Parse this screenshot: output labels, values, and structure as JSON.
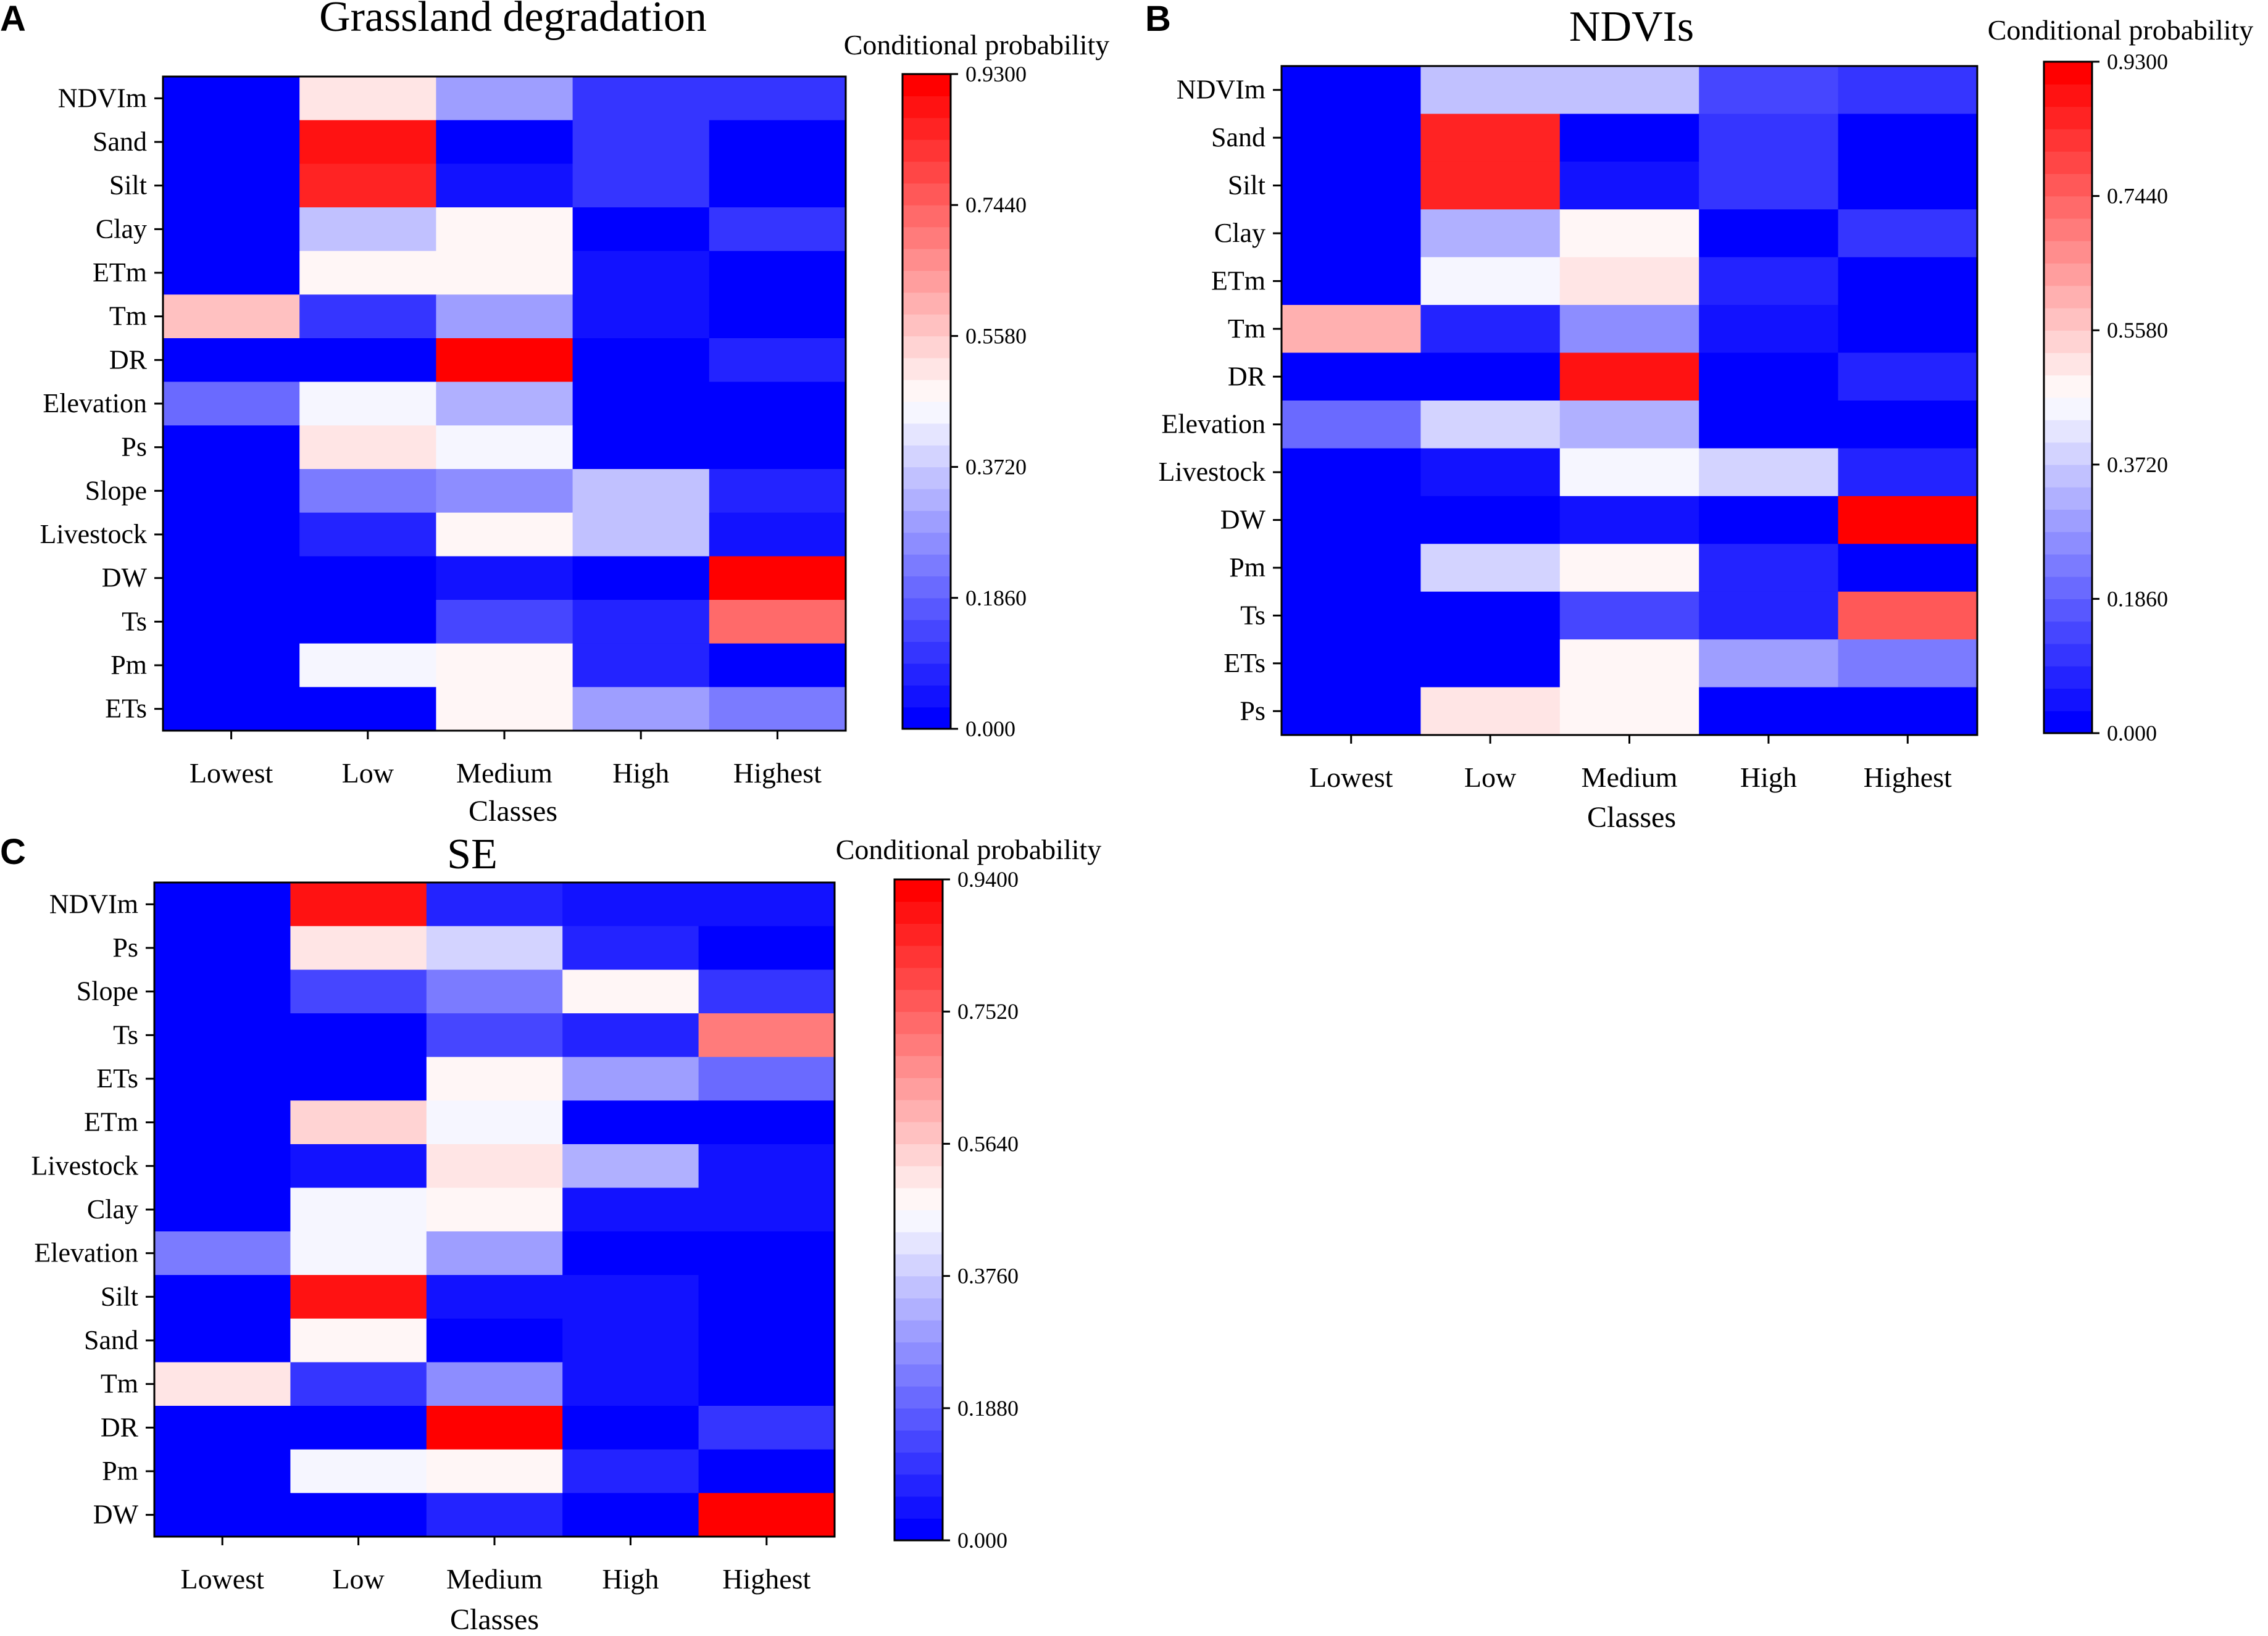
{
  "figure": {
    "background": "#ffffff"
  },
  "colormap": {
    "low": "#0000ff",
    "mid": "#ffffff",
    "high": "#ff0000",
    "levels": 30
  },
  "chart_data": [
    {
      "type": "heatmap",
      "panel": "A",
      "title": "Grassland  degradation",
      "xlabel": "Classes",
      "ylabel": "",
      "colorbar_label": "Conditional probability",
      "colorbar_ticks": [
        "0.000",
        "0.1860",
        "0.3720",
        "0.5580",
        "0.7440",
        "0.9300"
      ],
      "vmin": 0,
      "vmax": 0.93,
      "columns": [
        "Lowest",
        "Low",
        "Medium",
        "High",
        "Highest"
      ],
      "rows": [
        "NDVIm",
        "Sand",
        "Silt",
        "Clay",
        "ETm",
        "Tm",
        "DR",
        "Elevation",
        "Ps",
        "Slope",
        "Livestock",
        "DW",
        "Ts",
        "Pm",
        "ETs"
      ],
      "values": [
        [
          0.0,
          0.5,
          0.28,
          0.11,
          0.11
        ],
        [
          0.0,
          0.88,
          0.02,
          0.11,
          0.0
        ],
        [
          0.0,
          0.85,
          0.05,
          0.11,
          0.0
        ],
        [
          0.0,
          0.37,
          0.48,
          0.02,
          0.11
        ],
        [
          0.0,
          0.48,
          0.48,
          0.05,
          0.02
        ],
        [
          0.56,
          0.11,
          0.28,
          0.05,
          0.02
        ],
        [
          0.02,
          0.02,
          0.91,
          0.02,
          0.09
        ],
        [
          0.19,
          0.44,
          0.33,
          0.02,
          0.02
        ],
        [
          0.0,
          0.52,
          0.44,
          0.02,
          0.02
        ],
        [
          0.0,
          0.22,
          0.26,
          0.37,
          0.09
        ],
        [
          0.0,
          0.07,
          0.48,
          0.35,
          0.05
        ],
        [
          0.0,
          0.0,
          0.05,
          0.02,
          0.92
        ],
        [
          0.0,
          0.0,
          0.13,
          0.09,
          0.74
        ],
        [
          0.0,
          0.44,
          0.48,
          0.09,
          0.02
        ],
        [
          0.0,
          0.02,
          0.48,
          0.3,
          0.22
        ]
      ]
    },
    {
      "type": "heatmap",
      "panel": "B",
      "title": "NDVIs",
      "xlabel": "Classes",
      "ylabel": "",
      "colorbar_label": "Conditional probability",
      "colorbar_ticks": [
        "0.000",
        "0.1860",
        "0.3720",
        "0.5580",
        "0.7440",
        "0.9300"
      ],
      "vmin": 0,
      "vmax": 0.93,
      "columns": [
        "Lowest",
        "Low",
        "Medium",
        "High",
        "Highest"
      ],
      "rows": [
        "NDVIm",
        "Sand",
        "Silt",
        "Clay",
        "ETm",
        "Tm",
        "DR",
        "Elevation",
        "Livestock",
        "DW",
        "Pm",
        "Ts",
        "ETs",
        "Ps"
      ],
      "values": [
        [
          0.0,
          0.35,
          0.35,
          0.13,
          0.11
        ],
        [
          0.0,
          0.85,
          0.02,
          0.11,
          0.0
        ],
        [
          0.0,
          0.85,
          0.05,
          0.11,
          0.0
        ],
        [
          0.0,
          0.33,
          0.48,
          0.02,
          0.11
        ],
        [
          0.0,
          0.44,
          0.52,
          0.07,
          0.02
        ],
        [
          0.6,
          0.09,
          0.26,
          0.05,
          0.02
        ],
        [
          0.02,
          0.02,
          0.89,
          0.02,
          0.07
        ],
        [
          0.19,
          0.39,
          0.33,
          0.02,
          0.02
        ],
        [
          0.0,
          0.05,
          0.44,
          0.39,
          0.07
        ],
        [
          0.0,
          0.0,
          0.05,
          0.02,
          0.93
        ],
        [
          0.0,
          0.39,
          0.48,
          0.09,
          0.02
        ],
        [
          0.0,
          0.0,
          0.15,
          0.09,
          0.76
        ],
        [
          0.0,
          0.0,
          0.48,
          0.3,
          0.22
        ],
        [
          0.0,
          0.52,
          0.48,
          0.02,
          0.02
        ]
      ]
    },
    {
      "type": "heatmap",
      "panel": "C",
      "title": "SE",
      "xlabel": "Classes",
      "ylabel": "",
      "colorbar_label": "Conditional probability",
      "colorbar_ticks": [
        "0.000",
        "0.1880",
        "0.3760",
        "0.5640",
        "0.7520",
        "0.9400"
      ],
      "vmin": 0,
      "vmax": 0.94,
      "columns": [
        "Lowest",
        "Low",
        "Medium",
        "High",
        "Highest"
      ],
      "rows": [
        "NDVIm",
        "Ps",
        "Slope",
        "Ts",
        "ETs",
        "ETm",
        "Livestock",
        "Clay",
        "Elevation",
        "Silt",
        "Sand",
        "Tm",
        "DR",
        "Pm",
        "DW"
      ],
      "values": [
        [
          0.0,
          0.9,
          0.09,
          0.05,
          0.05
        ],
        [
          0.0,
          0.52,
          0.39,
          0.07,
          0.02
        ],
        [
          0.0,
          0.15,
          0.22,
          0.48,
          0.11
        ],
        [
          0.0,
          0.0,
          0.15,
          0.07,
          0.7
        ],
        [
          0.0,
          0.0,
          0.48,
          0.3,
          0.19
        ],
        [
          0.0,
          0.54,
          0.44,
          0.02,
          0.02
        ],
        [
          0.0,
          0.05,
          0.52,
          0.33,
          0.05
        ],
        [
          0.0,
          0.44,
          0.5,
          0.05,
          0.05
        ],
        [
          0.22,
          0.44,
          0.3,
          0.02,
          0.02
        ],
        [
          0.0,
          0.89,
          0.05,
          0.05,
          0.02
        ],
        [
          0.0,
          0.47,
          0.02,
          0.05,
          0.02
        ],
        [
          0.52,
          0.11,
          0.28,
          0.05,
          0.02
        ],
        [
          0.02,
          0.02,
          0.91,
          0.02,
          0.11
        ],
        [
          0.02,
          0.44,
          0.5,
          0.07,
          0.02
        ],
        [
          0.0,
          0.0,
          0.07,
          0.02,
          0.92
        ]
      ]
    }
  ]
}
